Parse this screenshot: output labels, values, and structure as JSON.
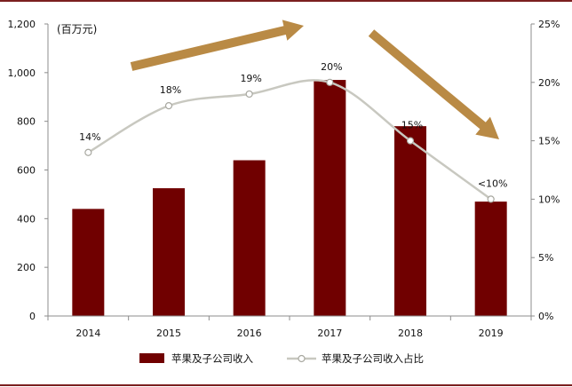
{
  "chart_data": {
    "type": "bar",
    "categories": [
      "2014",
      "2015",
      "2016",
      "2017",
      "2018",
      "2019"
    ],
    "series": [
      {
        "name": "苹果及子公司收入",
        "type": "bar",
        "values": [
          440,
          525,
          640,
          970,
          780,
          470
        ],
        "color": "#700000"
      },
      {
        "name": "苹果及子公司收入占比",
        "type": "line",
        "values": [
          14,
          18,
          19,
          20,
          15,
          10
        ],
        "data_labels": [
          "14%",
          "18%",
          "19%",
          "20%",
          "15%",
          "<10%"
        ],
        "color": "#c8c8c0",
        "marker_color": "#ffffff"
      }
    ],
    "y_left": {
      "unit_label": "(百万元)",
      "range": [
        0,
        1200
      ],
      "ticks": [
        0,
        200,
        400,
        600,
        800,
        1000,
        1200
      ],
      "tick_labels": [
        "0",
        "200",
        "400",
        "600",
        "800",
        "1,000",
        "1,200"
      ]
    },
    "y_right": {
      "range": [
        0,
        25
      ],
      "ticks": [
        0,
        5,
        10,
        15,
        20,
        25
      ],
      "tick_labels": [
        "0%",
        "5%",
        "10%",
        "15%",
        "20%",
        "25%"
      ]
    },
    "grid": false,
    "legend": {
      "position": "bottom"
    },
    "colors": {
      "arrow": "#b98a45",
      "axis": "#8c8c8c",
      "border": "#7b1f1f"
    }
  }
}
